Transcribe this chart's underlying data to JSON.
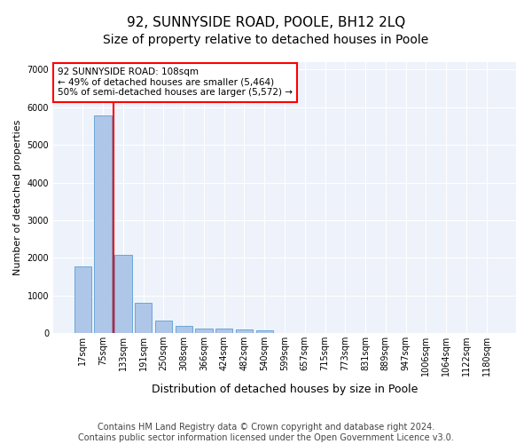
{
  "title1": "92, SUNNYSIDE ROAD, POOLE, BH12 2LQ",
  "title2": "Size of property relative to detached houses in Poole",
  "xlabel": "Distribution of detached houses by size in Poole",
  "ylabel": "Number of detached properties",
  "bar_labels": [
    "17sqm",
    "75sqm",
    "133sqm",
    "191sqm",
    "250sqm",
    "308sqm",
    "366sqm",
    "424sqm",
    "482sqm",
    "540sqm",
    "599sqm",
    "657sqm",
    "715sqm",
    "773sqm",
    "831sqm",
    "889sqm",
    "947sqm",
    "1006sqm",
    "1064sqm",
    "1122sqm",
    "1180sqm"
  ],
  "bar_values": [
    1780,
    5780,
    2070,
    800,
    340,
    200,
    120,
    110,
    95,
    80,
    0,
    0,
    0,
    0,
    0,
    0,
    0,
    0,
    0,
    0,
    0
  ],
  "bar_color": "#aec6e8",
  "bar_edge_color": "#5a9fd4",
  "vline_color": "red",
  "annotation_text": "92 SUNNYSIDE ROAD: 108sqm\n← 49% of detached houses are smaller (5,464)\n50% of semi-detached houses are larger (5,572) →",
  "annotation_box_color": "white",
  "annotation_box_edge": "red",
  "ylim": [
    0,
    7200
  ],
  "yticks": [
    0,
    1000,
    2000,
    3000,
    4000,
    5000,
    6000,
    7000
  ],
  "footnote": "Contains HM Land Registry data © Crown copyright and database right 2024.\nContains public sector information licensed under the Open Government Licence v3.0.",
  "bg_color": "#eef2fa",
  "grid_color": "#ffffff",
  "title1_fontsize": 11,
  "title2_fontsize": 10,
  "xlabel_fontsize": 9,
  "ylabel_fontsize": 8,
  "tick_fontsize": 7,
  "footnote_fontsize": 7,
  "annot_fontsize": 7.5
}
